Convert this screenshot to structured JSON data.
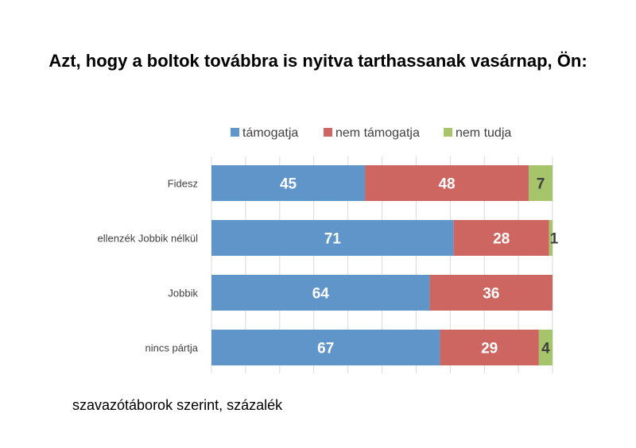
{
  "chart_data": {
    "type": "bar",
    "orientation": "horizontal",
    "stacked": true,
    "title": "Azt, hogy a boltok továbbra is nyitva tarthassanak vasárnap, Ön:",
    "categories": [
      "Fidesz",
      "ellenzék Jobbik nélkül",
      "Jobbik",
      "nincs pártja"
    ],
    "series": [
      {
        "name": "támogatja",
        "color": "#6095c9",
        "values": [
          45,
          71,
          64,
          67
        ]
      },
      {
        "name": "nem támogatja",
        "color": "#cd6660",
        "values": [
          48,
          28,
          36,
          29
        ]
      },
      {
        "name": "nem tudja",
        "color": "#a6c46a",
        "values": [
          7,
          1,
          0,
          4
        ]
      }
    ],
    "xlim": [
      0,
      100
    ],
    "grid": true,
    "legend": "top",
    "note": "szavazótáborok szerint, százalék"
  }
}
